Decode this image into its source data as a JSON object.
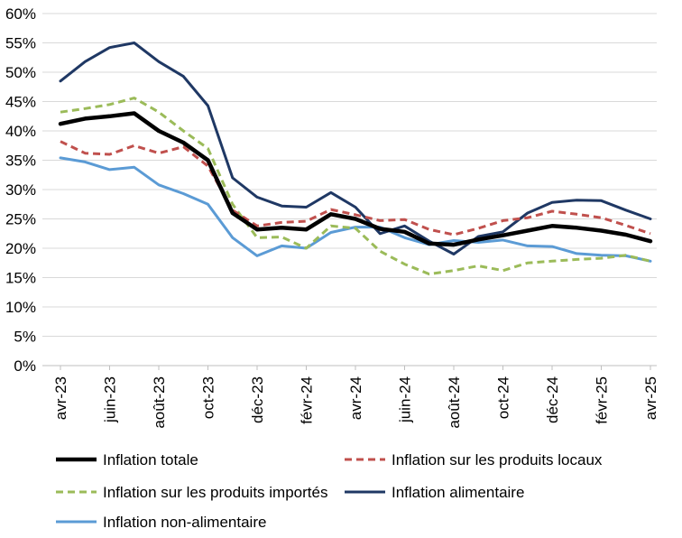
{
  "chart_data": {
    "type": "line",
    "title": "",
    "xlabel": "",
    "ylabel": "",
    "ylim": [
      0,
      60
    ],
    "y_ticks": [
      "0%",
      "5%",
      "10%",
      "15%",
      "20%",
      "25%",
      "30%",
      "35%",
      "40%",
      "45%",
      "50%",
      "55%",
      "60%"
    ],
    "categories": [
      "avr-23",
      "mai-23",
      "juin-23",
      "juil-23",
      "août-23",
      "sept-23",
      "oct-23",
      "nov-23",
      "déc-23",
      "janv-24",
      "févr-24",
      "mars-24",
      "avr-24",
      "mai-24",
      "juin-24",
      "juil-24",
      "août-24",
      "sept-24",
      "oct-24",
      "nov-24",
      "déc-24",
      "janv-25",
      "févr-25",
      "mars-25",
      "avr-25"
    ],
    "x_tick_labels": [
      "avr-23",
      "juin-23",
      "août-23",
      "oct-23",
      "déc-23",
      "févr-24",
      "avr-24",
      "juin-24",
      "août-24",
      "oct-24",
      "déc-24",
      "févr-25",
      "avr-25"
    ],
    "grid": true,
    "legend_position": "bottom",
    "series": [
      {
        "name": "Inflation totale",
        "color": "#000000",
        "dash": "solid",
        "width": "thick",
        "values": [
          41.2,
          42.1,
          42.5,
          43.0,
          40.0,
          38.0,
          35.0,
          26.0,
          23.2,
          23.5,
          23.2,
          25.8,
          25.0,
          23.3,
          22.8,
          20.8,
          20.6,
          21.5,
          22.2,
          23.0,
          23.8,
          23.5,
          23.0,
          22.3,
          21.2
        ]
      },
      {
        "name": "Inflation sur les produits locaux",
        "color": "#c0504d",
        "dash": "dashed",
        "width": "normal",
        "values": [
          38.2,
          36.2,
          36.0,
          37.5,
          36.2,
          37.3,
          34.0,
          26.5,
          23.8,
          24.4,
          24.6,
          26.6,
          25.7,
          24.7,
          24.9,
          23.2,
          22.3,
          23.4,
          24.7,
          25.2,
          26.3,
          25.8,
          25.2,
          23.9,
          22.5
        ]
      },
      {
        "name": "Inflation sur les produits importés",
        "color": "#9bbb59",
        "dash": "dashed",
        "width": "normal",
        "values": [
          43.2,
          43.8,
          44.5,
          45.6,
          43.2,
          40.0,
          37.0,
          27.5,
          21.8,
          21.9,
          20.0,
          23.8,
          23.4,
          19.5,
          17.3,
          15.6,
          16.2,
          17.0,
          16.2,
          17.5,
          17.8,
          18.1,
          18.3,
          18.8,
          17.8
        ]
      },
      {
        "name": "Inflation alimentaire",
        "color": "#1f3864",
        "dash": "solid",
        "width": "normal",
        "values": [
          48.5,
          51.8,
          54.2,
          55.0,
          51.8,
          49.3,
          44.3,
          32.0,
          28.7,
          27.2,
          27.0,
          29.5,
          27.0,
          22.5,
          23.8,
          21.2,
          19.0,
          22.0,
          22.8,
          26.0,
          27.8,
          28.2,
          28.1,
          26.5,
          25.0
        ]
      },
      {
        "name": "Inflation non-alimentaire",
        "color": "#5b9bd5",
        "dash": "solid",
        "width": "normal",
        "values": [
          35.4,
          34.7,
          33.4,
          33.8,
          30.8,
          29.3,
          27.5,
          21.8,
          18.7,
          20.4,
          20.0,
          22.7,
          23.6,
          23.6,
          21.8,
          20.6,
          21.3,
          21.0,
          21.4,
          20.4,
          20.3,
          19.1,
          18.8,
          18.7,
          17.8
        ]
      }
    ]
  }
}
